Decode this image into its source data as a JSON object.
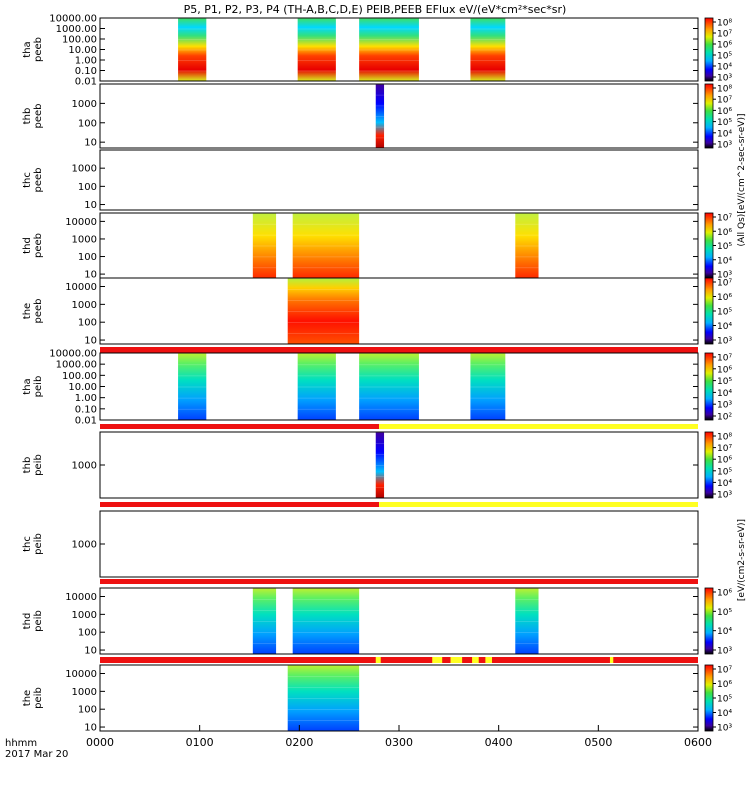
{
  "title": "P5, P1, P2, P3, P4 (TH-A,B,C,D,E) PEIB,PEEB EFlux eV/(eV*cm²*sec*sr)",
  "time_axis": {
    "label_top": "hhmm",
    "label_bottom": "2017 Mar 20",
    "ticks": [
      "0000",
      "0100",
      "0200",
      "0300",
      "0400",
      "0500",
      "0600"
    ]
  },
  "colorbar_labels": {
    "peeb": "(All Qs)[eV/(cm^2-sec-sr-eV)]",
    "peib": "[eV/(cm2-s-sr-eV)]"
  },
  "chart_data": [
    {
      "type": "heatmap",
      "panel": "tha-peeb",
      "ylabel": [
        "tha",
        "peeb"
      ],
      "ytick_labels": [
        "10000.00",
        "1000.00",
        "100.00",
        "10.00",
        "1.00",
        "0.10",
        "0.01"
      ],
      "ylog": true,
      "ylim": [
        0.01,
        10000
      ],
      "active_intervals_hhmm": [
        [
          "0047",
          "0104"
        ],
        [
          "0159",
          "0222"
        ],
        [
          "0236",
          "0312"
        ],
        [
          "0343",
          "0404"
        ]
      ],
      "colorbar_ticks": [
        "10⁸",
        "10⁷",
        "10⁶",
        "10⁵",
        "10⁴",
        "10³"
      ]
    },
    {
      "type": "heatmap",
      "panel": "thb-peeb",
      "ylabel": [
        "thb",
        "peeb"
      ],
      "ytick_labels": [
        "1000",
        "100",
        "10"
      ],
      "ylog": true,
      "ylim": [
        5,
        10000
      ],
      "active_intervals_hhmm": [
        [
          "0246",
          "0251"
        ]
      ],
      "colorbar_ticks": [
        "10⁸",
        "10⁷",
        "10⁶",
        "10⁵",
        "10⁴",
        "10³"
      ]
    },
    {
      "type": "heatmap",
      "panel": "thc-peeb",
      "ylabel": [
        "thc",
        "peeb"
      ],
      "ytick_labels": [
        "1000",
        "100",
        "10"
      ],
      "ylog": true,
      "ylim": [
        5,
        10000
      ],
      "active_intervals_hhmm": []
    },
    {
      "type": "heatmap",
      "panel": "thd-peeb",
      "ylabel": [
        "thd",
        "peeb"
      ],
      "ytick_labels": [
        "10000",
        "1000",
        "100",
        "10"
      ],
      "ylog": true,
      "ylim": [
        6,
        30000
      ],
      "active_intervals_hhmm": [
        [
          "0132",
          "0146"
        ],
        [
          "0156",
          "0236"
        ],
        [
          "0410",
          "0424"
        ]
      ],
      "colorbar_ticks": [
        "10⁷",
        "10⁶",
        "10⁵",
        "10⁴",
        "10³"
      ]
    },
    {
      "type": "heatmap",
      "panel": "the-peeb",
      "ylabel": [
        "the",
        "peeb"
      ],
      "ytick_labels": [
        "10000",
        "1000",
        "100",
        "10"
      ],
      "ylog": true,
      "ylim": [
        6,
        30000
      ],
      "active_intervals_hhmm": [
        [
          "0153",
          "0236"
        ]
      ],
      "colorbar_ticks": [
        "10⁷",
        "10⁶",
        "10⁵",
        "10⁴",
        "10³"
      ]
    },
    {
      "type": "heatmap",
      "panel": "tha-peib",
      "ylabel": [
        "tha",
        "peib"
      ],
      "ytick_labels": [
        "10000.00",
        "1000.00",
        "100.00",
        "10.00",
        "1.00",
        "0.10",
        "0.01"
      ],
      "ylog": true,
      "ylim": [
        0.01,
        10000
      ],
      "active_intervals_hhmm": [
        [
          "0047",
          "0104"
        ],
        [
          "0159",
          "0222"
        ],
        [
          "0236",
          "0312"
        ],
        [
          "0343",
          "0404"
        ]
      ],
      "colorbar_ticks": [
        "10⁷",
        "10⁶",
        "10⁵",
        "10⁴",
        "10³",
        "10²"
      ]
    },
    {
      "type": "heatmap",
      "panel": "thb-peib",
      "ylabel": [
        "thb",
        "peib"
      ],
      "ytick_labels": [
        "1000"
      ],
      "ylog": true,
      "ylim": [
        100,
        10000
      ],
      "active_intervals_hhmm": [
        [
          "0246",
          "0251"
        ]
      ],
      "colorbar_ticks": [
        "10⁸",
        "10⁷",
        "10⁶",
        "10⁵",
        "10⁴",
        "10³"
      ]
    },
    {
      "type": "heatmap",
      "panel": "thc-peib",
      "ylabel": [
        "thc",
        "peib"
      ],
      "ytick_labels": [
        "1000"
      ],
      "ylog": true,
      "ylim": [
        100,
        10000
      ],
      "active_intervals_hhmm": []
    },
    {
      "type": "heatmap",
      "panel": "thd-peib",
      "ylabel": [
        "thd",
        "peib"
      ],
      "ytick_labels": [
        "10000",
        "1000",
        "100",
        "10"
      ],
      "ylog": true,
      "ylim": [
        6,
        30000
      ],
      "active_intervals_hhmm": [
        [
          "0132",
          "0146"
        ],
        [
          "0156",
          "0236"
        ],
        [
          "0410",
          "0424"
        ]
      ],
      "colorbar_ticks": [
        "10⁶",
        "10⁵",
        "10⁴",
        "10³"
      ]
    },
    {
      "type": "heatmap",
      "panel": "the-peib",
      "ylabel": [
        "the",
        "peib"
      ],
      "ytick_labels": [
        "10000",
        "1000",
        "100",
        "10"
      ],
      "ylog": true,
      "ylim": [
        6,
        30000
      ],
      "active_intervals_hhmm": [
        [
          "0153",
          "0236"
        ]
      ],
      "colorbar_ticks": [
        "10⁷",
        "10⁶",
        "10⁵",
        "10⁴",
        "10³"
      ]
    }
  ],
  "colors": {
    "status_red": "#ee1111",
    "status_yellow": "#ffff22",
    "axis": "#000000"
  }
}
